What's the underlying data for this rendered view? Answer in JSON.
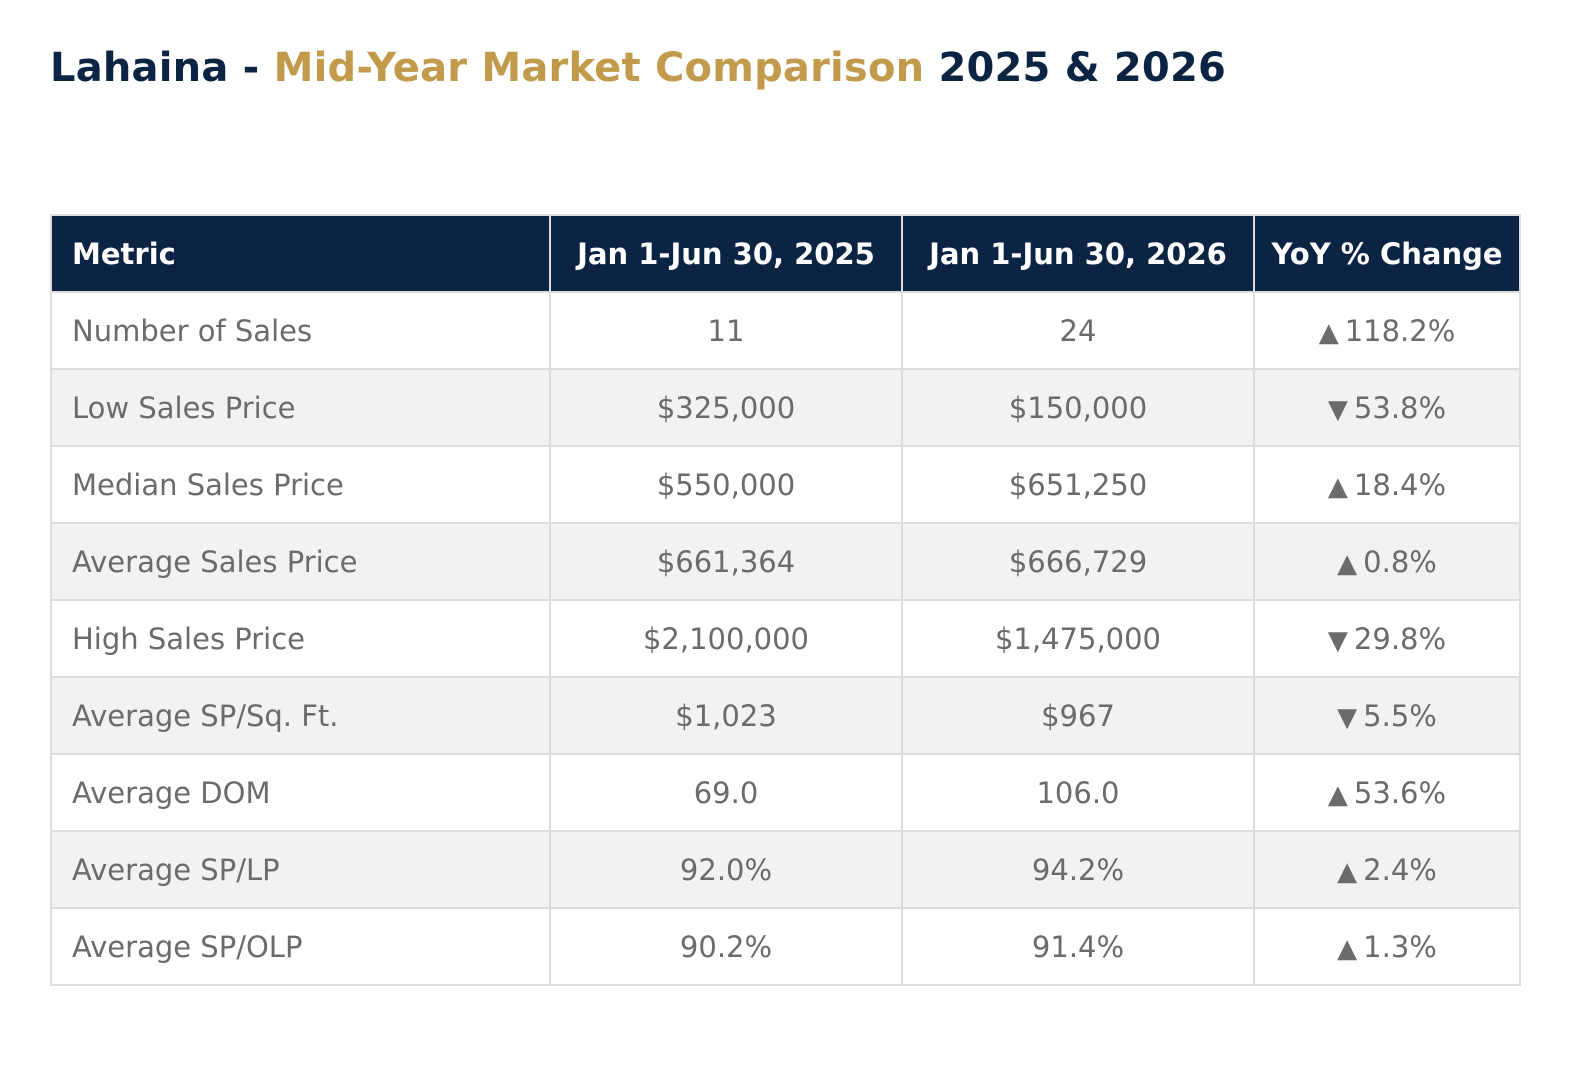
{
  "title": {
    "part1": "Lahaina - ",
    "part2": "Mid-Year Market Comparison",
    "part3": " 2025 & 2026"
  },
  "colors": {
    "navy": "#0c2444",
    "gold": "#c29a4b",
    "text_gray": "#6b6b6b",
    "row_alt": "#f2f2f2",
    "border": "#dcdcdc"
  },
  "chart_data": {
    "type": "table",
    "columns": [
      "Metric",
      "Jan 1-Jun 30, 2025",
      "Jan 1-Jun 30, 2026",
      "YoY % Change"
    ],
    "rows": [
      {
        "metric": "Number of Sales",
        "y2025": "11",
        "y2026": "24",
        "direction": "up",
        "arrow": "▲",
        "change": "118.2%"
      },
      {
        "metric": "Low Sales Price",
        "y2025": "$325,000",
        "y2026": "$150,000",
        "direction": "down",
        "arrow": "▼",
        "change": "53.8%"
      },
      {
        "metric": "Median Sales Price",
        "y2025": "$550,000",
        "y2026": "$651,250",
        "direction": "up",
        "arrow": "▲",
        "change": "18.4%"
      },
      {
        "metric": "Average Sales Price",
        "y2025": "$661,364",
        "y2026": "$666,729",
        "direction": "up",
        "arrow": "▲",
        "change": "0.8%"
      },
      {
        "metric": "High Sales Price",
        "y2025": "$2,100,000",
        "y2026": "$1,475,000",
        "direction": "down",
        "arrow": "▼",
        "change": "29.8%"
      },
      {
        "metric": "Average SP/Sq. Ft.",
        "y2025": "$1,023",
        "y2026": "$967",
        "direction": "down",
        "arrow": "▼",
        "change": "5.5%"
      },
      {
        "metric": "Average DOM",
        "y2025": "69.0",
        "y2026": "106.0",
        "direction": "up",
        "arrow": "▲",
        "change": "53.6%"
      },
      {
        "metric": "Average SP/LP",
        "y2025": "92.0%",
        "y2026": "94.2%",
        "direction": "up",
        "arrow": "▲",
        "change": "2.4%"
      },
      {
        "metric": "Average SP/OLP",
        "y2025": "90.2%",
        "y2026": "91.4%",
        "direction": "up",
        "arrow": "▲",
        "change": "1.3%"
      }
    ]
  }
}
